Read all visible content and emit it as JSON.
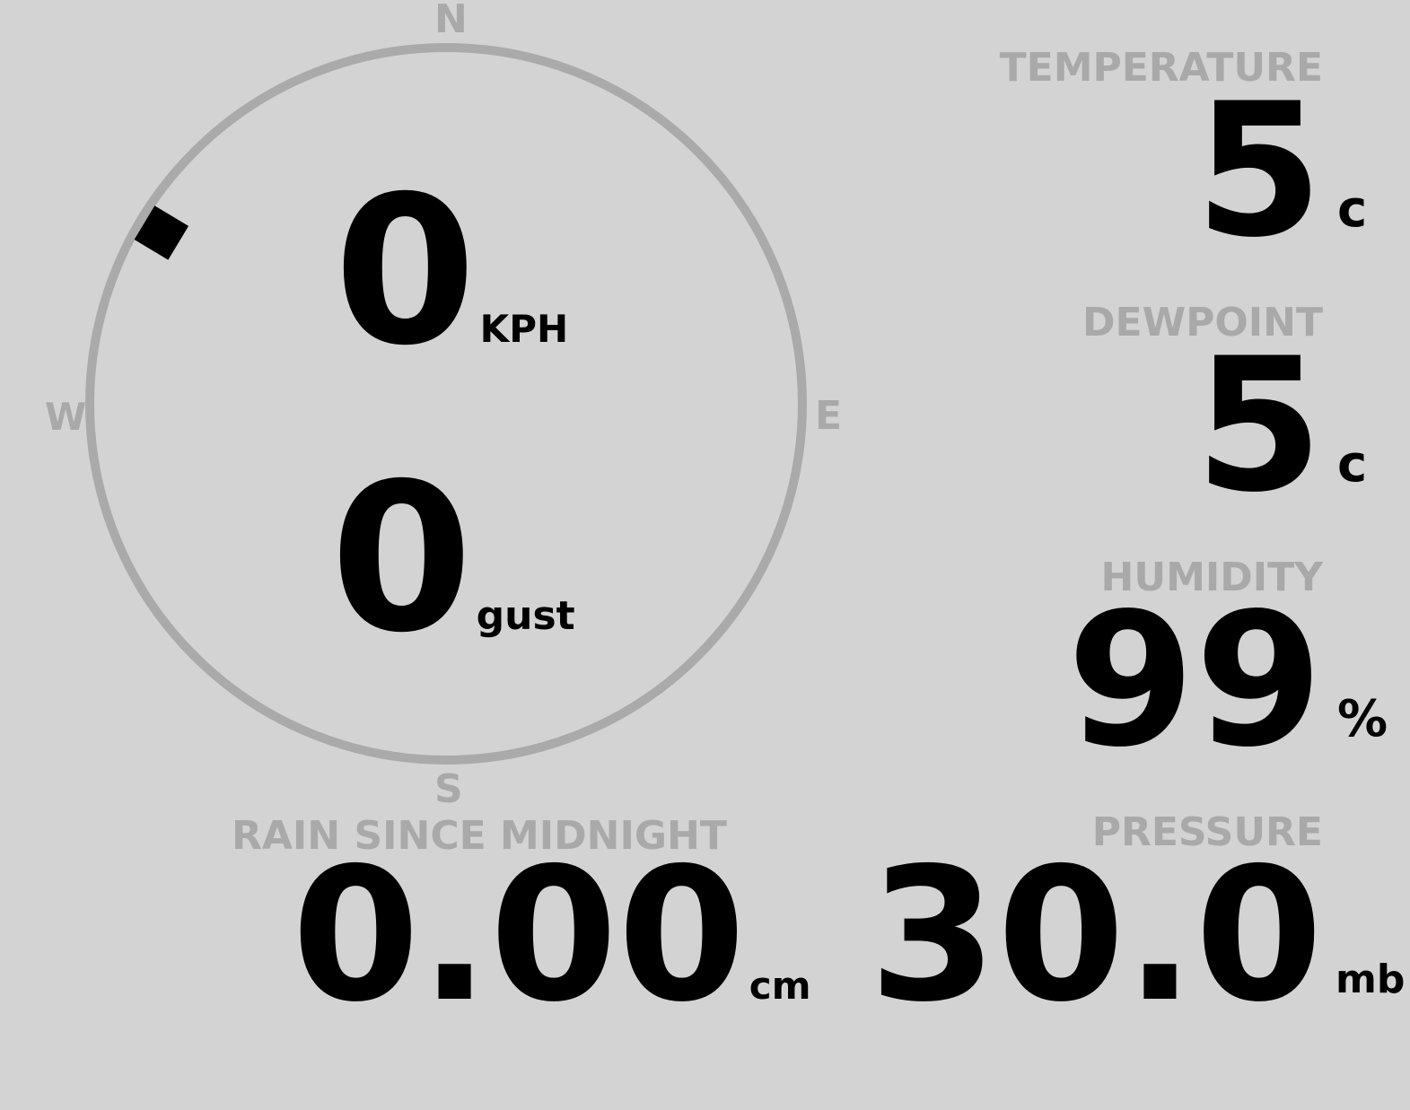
{
  "compass": {
    "north": "N",
    "south": "S",
    "east": "E",
    "west": "W",
    "wind_direction_deg": 301,
    "ring_color": "#aaaaaa",
    "marker_icon": "wind-direction-marker"
  },
  "wind": {
    "speed": "0",
    "speed_unit": "KPH",
    "gust": "0",
    "gust_unit": "gust"
  },
  "rain": {
    "label": "RAIN SINCE MIDNIGHT",
    "value": "0.00",
    "unit": "cm"
  },
  "temperature": {
    "label": "TEMPERATURE",
    "value": "5",
    "unit": "c"
  },
  "dewpoint": {
    "label": "DEWPOINT",
    "value": "5",
    "unit": "c"
  },
  "humidity": {
    "label": "HUMIDITY",
    "value": "99",
    "unit": "%"
  },
  "pressure": {
    "label": "PRESSURE",
    "value": "30.0",
    "unit": "mb"
  },
  "colors": {
    "background": "#d3d3d3",
    "label": "#a9a9a9",
    "value": "#000000"
  }
}
